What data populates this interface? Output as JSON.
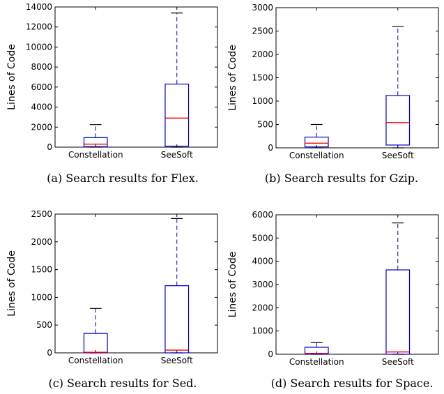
{
  "chart_data": [
    {
      "type": "box",
      "caption": "(a) Search results for Flex.",
      "ylabel": "Lines of Code",
      "ylim": [
        0,
        14000
      ],
      "yticks": [
        0,
        2000,
        4000,
        6000,
        8000,
        10000,
        12000,
        14000
      ],
      "categories": [
        "Constellation",
        "SeeSoft"
      ],
      "boxes": [
        {
          "whisker_low": 0,
          "q1": 50,
          "median": 300,
          "q3": 950,
          "whisker_high": 2250
        },
        {
          "whisker_low": 0,
          "q1": 100,
          "median": 2900,
          "q3": 6300,
          "whisker_high": 13400
        }
      ]
    },
    {
      "type": "box",
      "caption": "(b) Search results for Gzip.",
      "ylabel": "Lines of Code",
      "ylim": [
        0,
        3000
      ],
      "yticks": [
        0,
        500,
        1000,
        1500,
        2000,
        2500,
        3000
      ],
      "categories": [
        "Constellation",
        "SeeSoft"
      ],
      "boxes": [
        {
          "whisker_low": 0,
          "q1": 20,
          "median": 100,
          "q3": 230,
          "whisker_high": 500
        },
        {
          "whisker_low": 0,
          "q1": 60,
          "median": 540,
          "q3": 1120,
          "whisker_high": 2600
        }
      ]
    },
    {
      "type": "box",
      "caption": "(c) Search results for Sed.",
      "ylabel": "Lines of Code",
      "ylim": [
        0,
        2500
      ],
      "yticks": [
        0,
        500,
        1000,
        1500,
        2000,
        2500
      ],
      "categories": [
        "Constellation",
        "SeeSoft"
      ],
      "boxes": [
        {
          "whisker_low": 0,
          "q1": 0,
          "median": 10,
          "q3": 350,
          "whisker_high": 800
        },
        {
          "whisker_low": 0,
          "q1": 0,
          "median": 50,
          "q3": 1210,
          "whisker_high": 2420
        }
      ]
    },
    {
      "type": "box",
      "caption": "(d) Search results for Space.",
      "ylabel": "Lines of Code",
      "ylim": [
        0,
        6000
      ],
      "yticks": [
        0,
        1000,
        2000,
        3000,
        4000,
        5000,
        6000
      ],
      "categories": [
        "Constellation",
        "SeeSoft"
      ],
      "boxes": [
        {
          "whisker_low": 0,
          "q1": 0,
          "median": 40,
          "q3": 300,
          "whisker_high": 500
        },
        {
          "whisker_low": 0,
          "q1": 0,
          "median": 100,
          "q3": 3630,
          "whisker_high": 5650
        }
      ]
    }
  ],
  "colors": {
    "box": "#0000cc",
    "median": "#ff0000",
    "axis": "#000000"
  }
}
